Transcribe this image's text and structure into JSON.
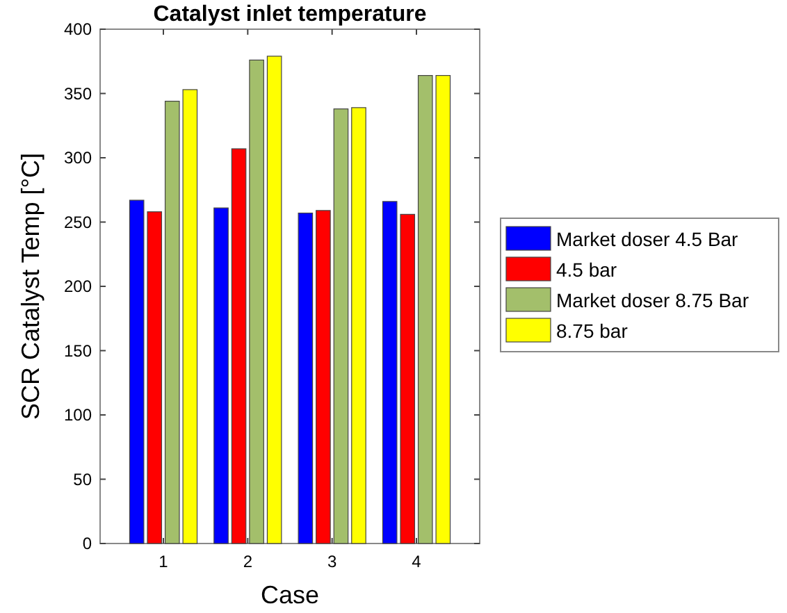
{
  "chart_data": {
    "type": "bar",
    "title": "Catalyst inlet temperature",
    "xlabel": "Case",
    "ylabel": "SCR Catalyst Temp [°C]",
    "categories": [
      "1",
      "2",
      "3",
      "4"
    ],
    "series": [
      {
        "name": "Market doser 4.5 Bar",
        "color": "#0000ff",
        "values": [
          267,
          261,
          257,
          266
        ]
      },
      {
        "name": "4.5 bar",
        "color": "#ff0000",
        "values": [
          258,
          307,
          259,
          256
        ]
      },
      {
        "name": "Market doser 8.75 Bar",
        "color": "#a3bf6b",
        "values": [
          344,
          376,
          338,
          364
        ]
      },
      {
        "name": "8.75 bar",
        "color": "#ffff00",
        "values": [
          353,
          379,
          339,
          364
        ]
      }
    ],
    "ylim": [
      0,
      400
    ],
    "yticks": [
      0,
      50,
      100,
      150,
      200,
      250,
      300,
      350,
      400
    ],
    "grid": false,
    "legend": "right"
  }
}
